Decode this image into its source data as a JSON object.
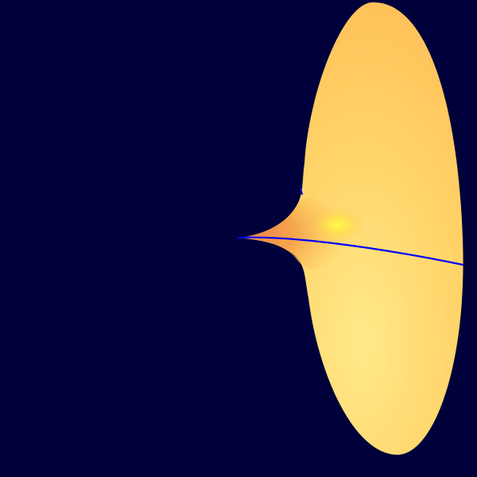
{
  "scene": {
    "description_free": true,
    "colors": {
      "background": "#00003a",
      "surface_light": "#ffe98a",
      "surface_mid": "#ffc95a",
      "surface_dark": "#f5a64e",
      "surface_shadow": "#f08a48",
      "highlight": "#fffc4a",
      "curve": "#0000ff"
    }
  }
}
